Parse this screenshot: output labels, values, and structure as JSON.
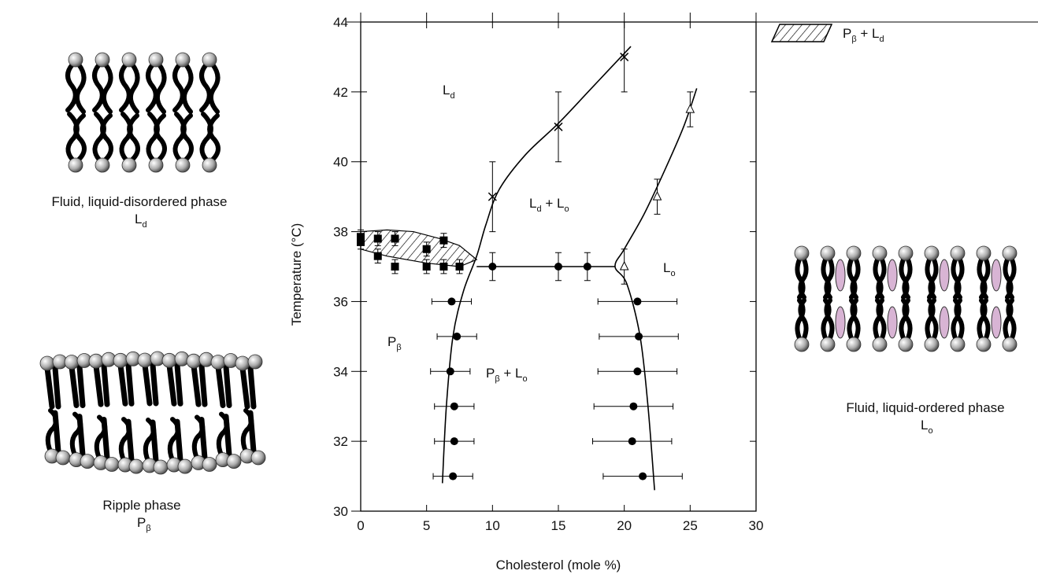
{
  "chart_data": {
    "type": "scatter",
    "xlabel": "Cholesterol (mole %)",
    "ylabel": "Temperature (°C)",
    "xlim": [
      0,
      30
    ],
    "xticks": [
      0,
      5,
      10,
      15,
      20,
      25,
      30
    ],
    "ylim": [
      30,
      44
    ],
    "yticks": [
      30,
      32,
      34,
      36,
      38,
      40,
      42,
      44
    ],
    "color": "#000000",
    "series": [
      {
        "marker": "square",
        "x": [
          0,
          0,
          1.3,
          1.3,
          2.6,
          2.6,
          5,
          5,
          6.3,
          6.3,
          7.5
        ],
        "y": [
          37.85,
          37.7,
          37.8,
          37.3,
          37.8,
          37.0,
          37.5,
          37.0,
          37.75,
          37.0,
          37.0
        ],
        "yerr": [
          0.2,
          0.2,
          0.2,
          0.2,
          0.2,
          0.2,
          0.2,
          0.2,
          0.2,
          0.2,
          0.2
        ]
      },
      {
        "marker": "x",
        "x": [
          10,
          15,
          20
        ],
        "y": [
          39.0,
          41.0,
          43.0
        ],
        "yerr": [
          1.0,
          1.0,
          1.0
        ]
      },
      {
        "marker": "triangle",
        "x": [
          20,
          22.5,
          25
        ],
        "y": [
          37.0,
          39.0,
          41.5
        ],
        "yerr": [
          0.5,
          0.5,
          0.5
        ]
      },
      {
        "marker": "circle",
        "x": [
          10,
          15,
          17.2
        ],
        "y": [
          37.0,
          37.0,
          37.0
        ],
        "yerr": [
          0.4,
          0.4,
          0.4
        ]
      },
      {
        "marker": "circle",
        "x": [
          6.9,
          7.3,
          6.8,
          7.1,
          7.1,
          7.0
        ],
        "y": [
          36,
          35,
          34,
          33,
          32,
          31
        ],
        "xerr": [
          1.5,
          1.5,
          1.5,
          1.5,
          1.5,
          1.5
        ]
      },
      {
        "marker": "circle",
        "x": [
          21.0,
          21.1,
          21.0,
          20.7,
          20.6,
          21.4
        ],
        "y": [
          36,
          35,
          34,
          33,
          32,
          31
        ],
        "xerr": [
          3,
          3,
          3,
          3,
          3,
          3
        ]
      }
    ],
    "curves": [
      {
        "x": [
          6.2,
          6.5,
          7.0,
          7.8,
          8.8,
          9.5,
          10.5,
          12.5,
          15.0,
          17.5,
          20.5
        ],
        "y": [
          30.8,
          33.0,
          35.0,
          36.3,
          37.3,
          38.2,
          39.2,
          40.2,
          41.1,
          42.1,
          43.3
        ]
      },
      {
        "x": [
          22.3,
          21.8,
          21.2,
          20.2,
          19.3,
          20.0,
          21.5,
          23.0,
          24.5,
          25.5
        ],
        "y": [
          30.6,
          33.0,
          35.0,
          36.5,
          37.0,
          37.5,
          38.5,
          39.7,
          41.0,
          42.1
        ]
      },
      {
        "x": [
          8.8,
          19.3
        ],
        "y": [
          37,
          37
        ]
      }
    ],
    "region": {
      "x": [
        0,
        2,
        4,
        6,
        7.5,
        8.8,
        7.5,
        5,
        2,
        0
      ],
      "y": [
        38.0,
        38.05,
        38.0,
        37.8,
        37.6,
        37.2,
        37.0,
        37.1,
        37.3,
        37.5
      ]
    },
    "legend": [
      "P",
      "β",
      " + L",
      "d"
    ],
    "annotations": [
      [
        "L",
        "d"
      ],
      [
        "L",
        "d",
        " + L",
        "o"
      ],
      [
        "L",
        "o"
      ],
      [
        "P",
        "β"
      ],
      [
        "P",
        "β",
        " + L",
        "o"
      ]
    ],
    "captions": [
      {
        "text": "Fluid, liquid-disordered phase",
        "symbol": [
          "L",
          "d"
        ]
      },
      {
        "text": "Ripple phase",
        "symbol": [
          "P",
          "β"
        ]
      },
      {
        "text": "Fluid, liquid-ordered phase",
        "symbol": [
          "L",
          "o"
        ]
      }
    ]
  }
}
